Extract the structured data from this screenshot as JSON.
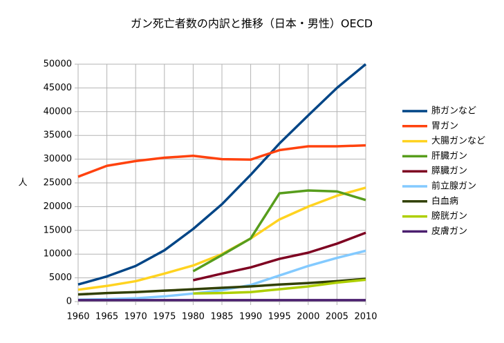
{
  "chart_data": {
    "type": "line",
    "title": "ガン死亡者数の内訳と推移（日本・男性）OECD",
    "y_label": "人",
    "x": [
      1960,
      1965,
      1970,
      1975,
      1980,
      1985,
      1990,
      1995,
      2000,
      2005,
      2010
    ],
    "xlim": [
      1960,
      2010
    ],
    "xticks": [
      1960,
      1965,
      1970,
      1975,
      1980,
      1985,
      1990,
      1995,
      2000,
      2005,
      2010
    ],
    "ylim": [
      0,
      50000
    ],
    "yticks": [
      0,
      5000,
      10000,
      15000,
      20000,
      25000,
      30000,
      35000,
      40000,
      45000,
      50000
    ],
    "grid": true,
    "legend": "right",
    "series": [
      {
        "name": "肺ガンなど",
        "color": "#004586",
        "values": [
          3600,
          5300,
          7500,
          10800,
          15300,
          20500,
          26700,
          33300,
          39200,
          45000,
          50000
        ]
      },
      {
        "name": "胃ガン",
        "color": "#ff420e",
        "values": [
          26300,
          28600,
          29600,
          30300,
          30700,
          30000,
          29900,
          31900,
          32700,
          32700,
          32900
        ]
      },
      {
        "name": "大腸ガンなど",
        "color": "#ffd320",
        "values": [
          2500,
          3300,
          4300,
          5900,
          7600,
          10000,
          13300,
          17300,
          20000,
          22300,
          24000
        ]
      },
      {
        "name": "肝臓ガン",
        "color": "#579d1c",
        "values": [
          null,
          null,
          null,
          null,
          6400,
          9800,
          13300,
          22800,
          23400,
          23200,
          21400
        ]
      },
      {
        "name": "膵臓ガン",
        "color": "#7e0021",
        "values": [
          null,
          null,
          null,
          null,
          4500,
          5900,
          7200,
          9000,
          10300,
          12200,
          14500
        ]
      },
      {
        "name": "前立腺ガン",
        "color": "#83caff",
        "values": [
          400,
          500,
          700,
          1100,
          1700,
          2400,
          3500,
          5500,
          7500,
          9200,
          10700
        ]
      },
      {
        "name": "白血病",
        "color": "#314004",
        "values": [
          1500,
          1800,
          2000,
          2300,
          2600,
          2900,
          3200,
          3600,
          3900,
          4300,
          4800
        ]
      },
      {
        "name": "膀胱ガン",
        "color": "#aecf00",
        "values": [
          null,
          null,
          null,
          null,
          1700,
          1800,
          2000,
          2600,
          3200,
          4000,
          4600
        ]
      },
      {
        "name": "皮膚ガン",
        "color": "#4b1f6f",
        "values": [
          300,
          300,
          300,
          300,
          300,
          300,
          300,
          300,
          300,
          300,
          300
        ]
      }
    ]
  }
}
